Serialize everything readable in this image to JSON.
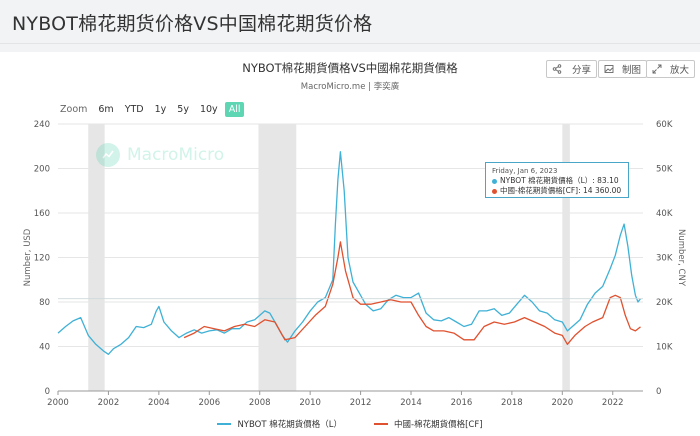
{
  "header": {
    "title": "NYBOT棉花期货价格VS中国棉花期货价格"
  },
  "toolbar": {
    "share_label": "分享",
    "image_label": "制图",
    "expand_label": "放大"
  },
  "zoom": {
    "label": "Zoom",
    "options": [
      "6m",
      "YTD",
      "1y",
      "5y",
      "10y",
      "All"
    ],
    "active": "All"
  },
  "watermark": {
    "text": "MacroMicro"
  },
  "tooltip": {
    "date": "Friday, Jan 6, 2023",
    "line1": "NYBOT 棉花期貨價格（L）: 83.10",
    "line2": "中國-棉花期貨價格[CF]: 14 360.00"
  },
  "chart_data": {
    "type": "line",
    "title": "NYBOT棉花期貨價格VS中國棉花期貨價格",
    "subtitle": "MacroMicro.me | 李奕廣",
    "xlabel": "",
    "ylabel_left": "Number, USD",
    "ylabel_right": "Number, CNY",
    "x_ticks": [
      "2000",
      "2002",
      "2004",
      "2006",
      "2008",
      "2010",
      "2012",
      "2014",
      "2016",
      "2018",
      "2020",
      "2022"
    ],
    "y_left_ticks": [
      "0",
      "40",
      "80",
      "120",
      "160",
      "200",
      "240"
    ],
    "y_right_ticks": [
      "0",
      "10K",
      "20K",
      "30K",
      "40K",
      "50K",
      "60K"
    ],
    "ylim_left": [
      0,
      240
    ],
    "ylim_right": [
      0,
      60000
    ],
    "xlim": [
      2000,
      2023.2
    ],
    "grid": true,
    "legend_position": "bottom",
    "recession_bands": [
      [
        2001.2,
        2001.85
      ],
      [
        2007.95,
        2009.45
      ],
      [
        2020.0,
        2020.3
      ]
    ],
    "colors": {
      "nybot": "#3fb1d6",
      "china": "#e0512f",
      "recession": "#e6e6e6"
    },
    "series": [
      {
        "name": "NYBOT 棉花期貨價格（L）",
        "axis": "left",
        "x": [
          2000.0,
          2000.3,
          2000.6,
          2000.9,
          2001.2,
          2001.5,
          2001.8,
          2002.0,
          2002.2,
          2002.5,
          2002.8,
          2003.1,
          2003.4,
          2003.7,
          2003.9,
          2004.0,
          2004.2,
          2004.5,
          2004.8,
          2005.1,
          2005.4,
          2005.7,
          2006.0,
          2006.3,
          2006.6,
          2006.9,
          2007.2,
          2007.5,
          2007.8,
          2008.0,
          2008.2,
          2008.4,
          2008.6,
          2008.9,
          2009.1,
          2009.4,
          2009.7,
          2010.0,
          2010.3,
          2010.6,
          2010.9,
          2011.0,
          2011.1,
          2011.2,
          2011.35,
          2011.5,
          2011.7,
          2011.9,
          2012.2,
          2012.5,
          2012.8,
          2013.1,
          2013.4,
          2013.7,
          2014.0,
          2014.3,
          2014.6,
          2014.9,
          2015.2,
          2015.5,
          2015.8,
          2016.1,
          2016.4,
          2016.7,
          2017.0,
          2017.3,
          2017.6,
          2017.9,
          2018.2,
          2018.5,
          2018.8,
          2019.1,
          2019.4,
          2019.7,
          2020.0,
          2020.2,
          2020.4,
          2020.7,
          2021.0,
          2021.3,
          2021.6,
          2021.9,
          2022.1,
          2022.3,
          2022.45,
          2022.6,
          2022.75,
          2022.9,
          2023.0,
          2023.1
        ],
        "values": [
          52,
          58,
          63,
          66,
          50,
          42,
          36,
          33,
          38,
          42,
          48,
          58,
          57,
          60,
          72,
          76,
          62,
          54,
          48,
          52,
          55,
          52,
          54,
          55,
          52,
          56,
          56,
          62,
          64,
          68,
          72,
          70,
          62,
          50,
          44,
          54,
          62,
          72,
          80,
          84,
          100,
          150,
          190,
          215,
          180,
          120,
          98,
          90,
          78,
          72,
          74,
          82,
          86,
          84,
          84,
          88,
          70,
          64,
          63,
          66,
          62,
          58,
          60,
          72,
          72,
          74,
          68,
          70,
          78,
          86,
          80,
          72,
          70,
          64,
          62,
          54,
          58,
          64,
          78,
          88,
          94,
          110,
          122,
          140,
          150,
          130,
          104,
          86,
          80,
          83
        ]
      },
      {
        "name": "中國-棉花期貨價格[CF]",
        "axis": "right",
        "x": [
          2005.0,
          2005.4,
          2005.8,
          2006.2,
          2006.6,
          2007.0,
          2007.4,
          2007.8,
          2008.2,
          2008.6,
          2009.0,
          2009.4,
          2009.8,
          2010.2,
          2010.6,
          2010.9,
          2011.1,
          2011.2,
          2011.4,
          2011.7,
          2012.0,
          2012.4,
          2012.8,
          2013.2,
          2013.6,
          2014.0,
          2014.3,
          2014.6,
          2014.9,
          2015.3,
          2015.7,
          2016.1,
          2016.5,
          2016.9,
          2017.3,
          2017.7,
          2018.1,
          2018.5,
          2018.9,
          2019.3,
          2019.7,
          2020.0,
          2020.2,
          2020.5,
          2020.9,
          2021.2,
          2021.6,
          2021.9,
          2022.1,
          2022.3,
          2022.5,
          2022.7,
          2022.9,
          2023.1
        ],
        "values": [
          12000,
          13000,
          14500,
          14000,
          13500,
          14500,
          15000,
          14500,
          16000,
          15500,
          11500,
          12000,
          14500,
          17000,
          19000,
          24000,
          30000,
          33500,
          27000,
          21000,
          19500,
          19500,
          20000,
          20500,
          20000,
          20000,
          17000,
          14500,
          13500,
          13500,
          13000,
          11500,
          11500,
          14500,
          15500,
          15000,
          15500,
          16500,
          15500,
          14500,
          13000,
          12500,
          10500,
          12500,
          14500,
          15500,
          16500,
          21000,
          21500,
          21000,
          17000,
          14000,
          13500,
          14400
        ]
      }
    ]
  }
}
